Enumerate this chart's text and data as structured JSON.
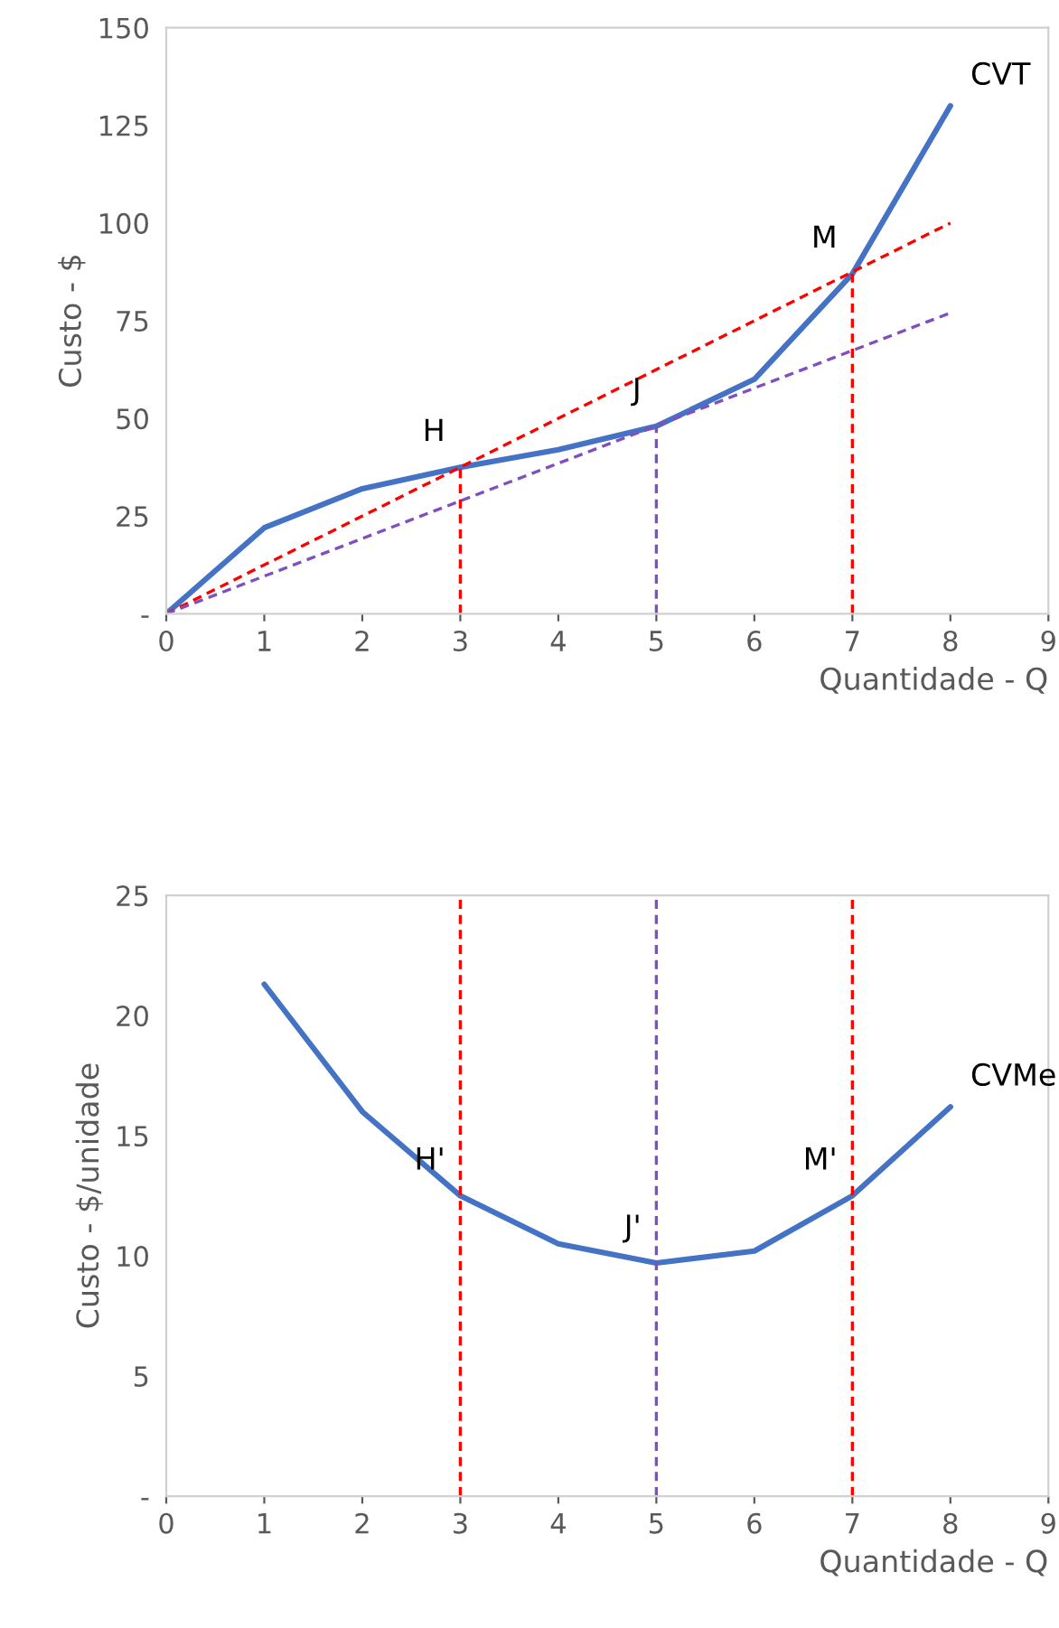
{
  "chart_data": [
    {
      "type": "line",
      "ylabel": "Custo - $",
      "xlabel": "Quantidade - Q",
      "xlim": [
        0,
        9
      ],
      "ylim": [
        0,
        150
      ],
      "xticks": [
        0,
        1,
        2,
        3,
        4,
        5,
        6,
        7,
        8,
        9
      ],
      "yticks": [
        {
          "value": 0,
          "label": "-"
        },
        25,
        50,
        75,
        100,
        125,
        150
      ],
      "grid": false,
      "legend": false,
      "series": [
        {
          "name": "CVT",
          "color": "#4472c4",
          "x": [
            0,
            1,
            2,
            3,
            4,
            5,
            6,
            7,
            8
          ],
          "values": [
            0,
            22,
            32,
            37.5,
            42,
            48,
            60,
            87,
            130
          ]
        },
        {
          "color": "#ff0000",
          "line_style": "dashed",
          "x": [
            0,
            8
          ],
          "values": [
            0,
            100
          ]
        },
        {
          "color": "#7f4fc0",
          "line_style": "dashed",
          "x": [
            0,
            8
          ],
          "values": [
            0,
            77
          ]
        },
        {
          "color": "#ff0000",
          "line_style": "dashed",
          "x": [
            3,
            3
          ],
          "values": [
            0,
            37.5
          ]
        },
        {
          "color": "#7f4fc0",
          "line_style": "dashed",
          "x": [
            5,
            5
          ],
          "values": [
            0,
            48
          ]
        },
        {
          "color": "#ff0000",
          "line_style": "dashed",
          "x": [
            7,
            7
          ],
          "values": [
            0,
            87
          ]
        }
      ],
      "annotations": [
        {
          "text": "H",
          "x": 3,
          "y": 37.5
        },
        {
          "text": "J",
          "x": 5,
          "y": 48
        },
        {
          "text": "M",
          "x": 7,
          "y": 87
        }
      ]
    },
    {
      "type": "line",
      "ylabel": "Custo - $/unidade",
      "xlabel": "Quantidade - Q",
      "xlim": [
        0,
        9
      ],
      "ylim": [
        0,
        25
      ],
      "xticks": [
        0,
        1,
        2,
        3,
        4,
        5,
        6,
        7,
        8,
        9
      ],
      "yticks": [
        {
          "value": 0,
          "label": "-"
        },
        5,
        10,
        15,
        20,
        25
      ],
      "grid": false,
      "legend": false,
      "series": [
        {
          "name": "CVMe",
          "color": "#4472c4",
          "x": [
            1,
            2,
            3,
            4,
            5,
            6,
            7,
            8
          ],
          "values": [
            21.3,
            16,
            12.5,
            10.5,
            9.7,
            10.2,
            12.5,
            16.2
          ]
        }
      ],
      "ref_lines": [
        {
          "axis": "x",
          "value": 3,
          "color": "#ff0000",
          "line_style": "dashed"
        },
        {
          "axis": "x",
          "value": 5,
          "color": "#7f4fc0",
          "line_style": "dashed"
        },
        {
          "axis": "x",
          "value": 7,
          "color": "#ff0000",
          "line_style": "dashed"
        }
      ],
      "annotations": [
        {
          "text": "H'",
          "x": 3,
          "y": 12.5
        },
        {
          "text": "J'",
          "x": 5,
          "y": 9.7
        },
        {
          "text": "M'",
          "x": 7,
          "y": 12.5
        }
      ]
    }
  ]
}
